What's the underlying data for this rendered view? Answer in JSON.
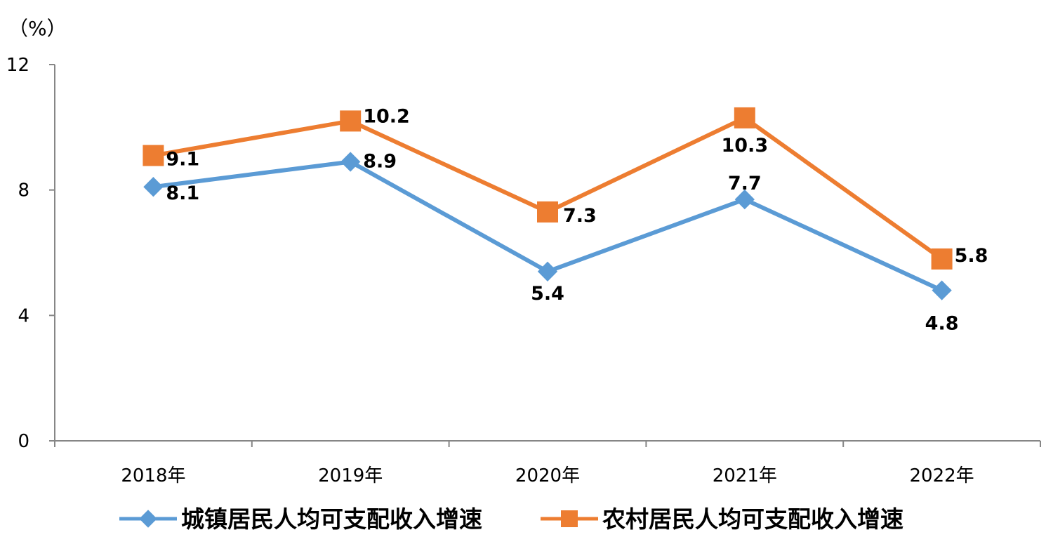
{
  "chart_data": {
    "type": "line",
    "unit_label": "（%）",
    "categories": [
      "2018年",
      "2019年",
      "2020年",
      "2021年",
      "2022年"
    ],
    "ylim": [
      0,
      12
    ],
    "yticks": [
      "0",
      "4",
      "8",
      "12"
    ],
    "grid": false,
    "legend_position": "bottom",
    "series": [
      {
        "name": "城镇居民人均可支配收入增速",
        "values": [
          8.1,
          8.9,
          5.4,
          7.7,
          4.8
        ],
        "labels": [
          "8.1",
          "8.9",
          "5.4",
          "7.7",
          "4.8"
        ],
        "color": "#5B9BD5",
        "marker": "diamond"
      },
      {
        "name": "农村居民人均可支配收入增速",
        "values": [
          9.1,
          10.2,
          7.3,
          10.3,
          5.8
        ],
        "labels": [
          "9.1",
          "10.2",
          "7.3",
          "10.3",
          "5.8"
        ],
        "color": "#ED7D31",
        "marker": "square"
      }
    ]
  }
}
